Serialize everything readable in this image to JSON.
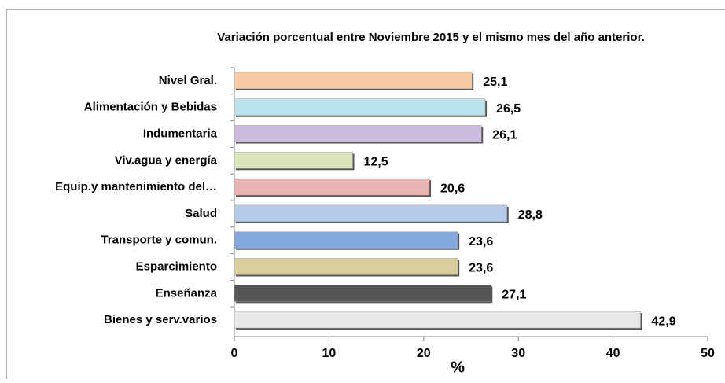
{
  "chart_data": {
    "type": "bar",
    "orientation": "horizontal",
    "title": "Variación porcentual entre Noviembre 2015 y el mismo  mes del año anterior.",
    "x_label": "%",
    "categories": [
      "Nivel Gral.",
      "Alimentación y Bebidas",
      "Indumentaria",
      "Viv.agua y energía",
      "Equip.y mantenimiento del…",
      "Salud",
      "Transporte y comun.",
      "Esparcimiento",
      "Enseñanza",
      "Bienes y serv.varios"
    ],
    "values": [
      25.1,
      26.5,
      26.1,
      12.5,
      20.6,
      28.8,
      23.6,
      23.6,
      27.1,
      42.9
    ],
    "value_labels": [
      "25,1",
      "26,5",
      "26,1",
      "12,5",
      "20,6",
      "28,8",
      "23,6",
      "23,6",
      "27,1",
      "42,9"
    ],
    "colors": [
      "#f6cba4",
      "#b9e2ea",
      "#cbbbdf",
      "#d9e6bc",
      "#eab3b3",
      "#b4cbea",
      "#83a9de",
      "#dacf9c",
      "#555555",
      "#e8e8e8"
    ],
    "xlim": [
      0,
      50
    ],
    "xticks": [
      0,
      10,
      20,
      30,
      40,
      50
    ]
  }
}
